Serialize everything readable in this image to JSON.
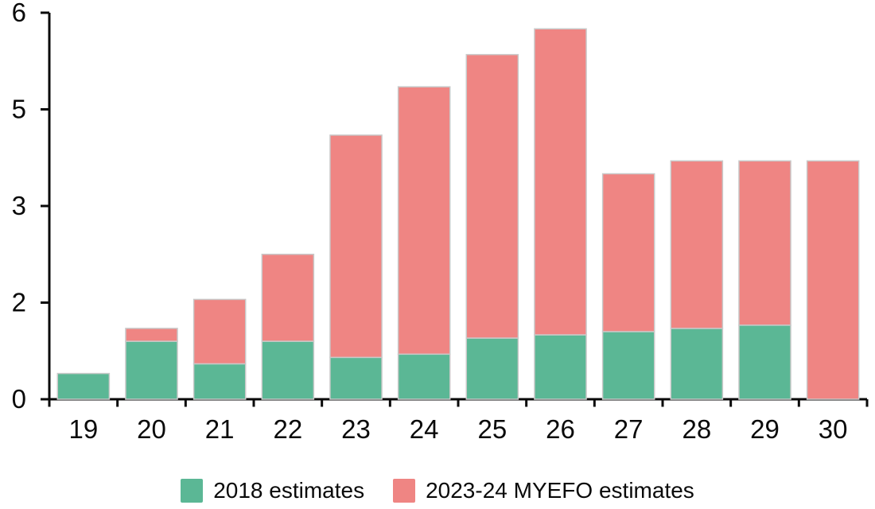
{
  "chart_data": {
    "type": "bar",
    "stacked": true,
    "title": "",
    "xlabel": "",
    "ylabel": "",
    "categories": [
      "19",
      "20",
      "21",
      "22",
      "23",
      "24",
      "25",
      "26",
      "27",
      "28",
      "29",
      "30"
    ],
    "series": [
      {
        "name": "2018 estimates",
        "color": "#5BB795",
        "values": [
          0.4,
          0.9,
          0.55,
          0.9,
          0.65,
          0.7,
          0.95,
          1.0,
          1.05,
          1.1,
          1.15,
          0
        ]
      },
      {
        "name": "2023-24 MYEFO estimates",
        "color": "#EF8583",
        "values": [
          0,
          0.2,
          1.0,
          1.35,
          3.45,
          4.15,
          4.4,
          4.75,
          2.45,
          2.6,
          2.55,
          3.7
        ]
      }
    ],
    "stacked_totals": [
      0.4,
      1.1,
      1.55,
      2.25,
      4.1,
      4.85,
      5.35,
      5.75,
      3.5,
      3.7,
      3.7,
      3.7
    ],
    "ylim": [
      0,
      6
    ],
    "y_ticks": [
      {
        "value": 0,
        "label": "0"
      },
      {
        "value": 1.5,
        "label": "2"
      },
      {
        "value": 3,
        "label": "3"
      },
      {
        "value": 4.5,
        "label": "5"
      },
      {
        "value": 6,
        "label": "6"
      }
    ],
    "grid": false,
    "legend_position": "bottom",
    "axis_color": "#0a0a0a",
    "bar_outline_color": "#c9c9c9",
    "background_color": "#ffffff"
  }
}
